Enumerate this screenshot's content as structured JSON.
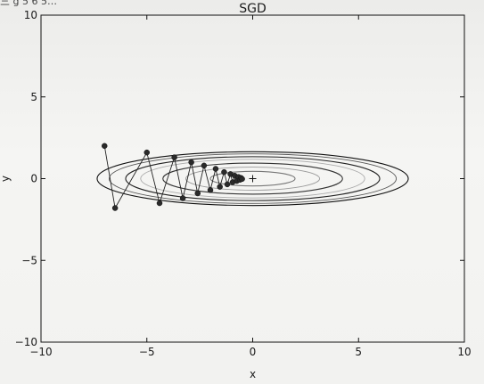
{
  "header_fragment": "三 g 5 6 5…",
  "chart_data": {
    "type": "scatter",
    "title": "SGD",
    "xlabel": "x",
    "ylabel": "y",
    "xlim": [
      -10,
      10
    ],
    "ylim": [
      -10,
      10
    ],
    "xticks": [
      -10,
      -5,
      0,
      5,
      10
    ],
    "yticks": [
      -10,
      -5,
      0,
      5,
      10
    ],
    "xtick_labels": [
      "−10",
      "−5",
      "0",
      "5",
      "10"
    ],
    "ytick_labels": [
      "−10",
      "−5",
      "0",
      "5",
      "10"
    ],
    "grid": false,
    "contour": {
      "function": "x^2/20 + y^2",
      "levels": [
        0.2,
        0.5,
        0.9,
        1.4,
        1.8,
        2.3,
        2.7
      ],
      "center": [
        0,
        0
      ]
    },
    "minimum_marker": {
      "x": 0,
      "y": 0
    },
    "series": [
      {
        "values": [
          {
            "x": -7.0,
            "y": 2.0
          },
          {
            "x": -6.5,
            "y": -1.8
          },
          {
            "x": -5.0,
            "y": 1.6
          },
          {
            "x": -4.4,
            "y": -1.5
          },
          {
            "x": -3.7,
            "y": 1.3
          },
          {
            "x": -3.3,
            "y": -1.2
          },
          {
            "x": -2.9,
            "y": 1.0
          },
          {
            "x": -2.6,
            "y": -0.9
          },
          {
            "x": -2.3,
            "y": 0.8
          },
          {
            "x": -2.0,
            "y": -0.7
          },
          {
            "x": -1.75,
            "y": 0.6
          },
          {
            "x": -1.55,
            "y": -0.5
          },
          {
            "x": -1.35,
            "y": 0.4
          },
          {
            "x": -1.2,
            "y": -0.35
          },
          {
            "x": -1.05,
            "y": 0.28
          },
          {
            "x": -0.95,
            "y": -0.22
          },
          {
            "x": -0.85,
            "y": 0.18
          },
          {
            "x": -0.75,
            "y": -0.14
          },
          {
            "x": -0.67,
            "y": 0.1
          },
          {
            "x": -0.6,
            "y": -0.07
          },
          {
            "x": -0.55,
            "y": 0.04
          },
          {
            "x": -0.5,
            "y": -0.02
          }
        ]
      }
    ]
  }
}
